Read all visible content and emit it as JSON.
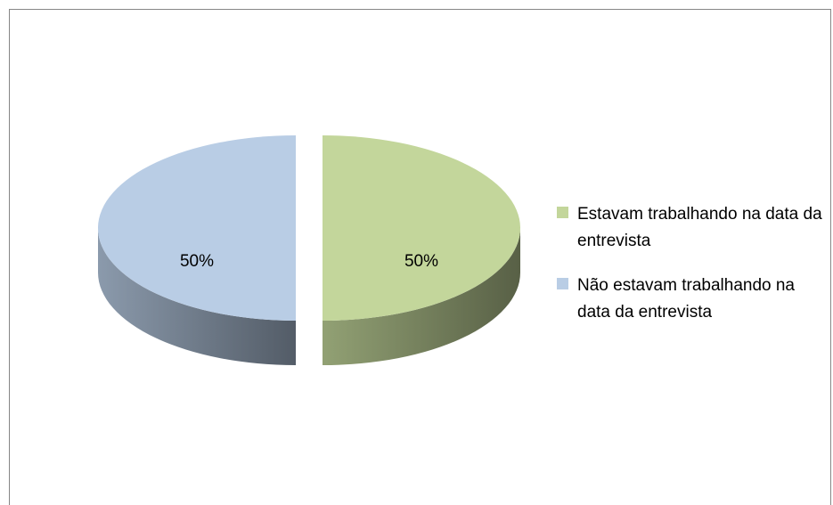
{
  "chart_data": {
    "type": "pie",
    "categories": [
      "Estavam trabalhando na data da entrevista",
      "Não estavam trabalhando na data da entrevista"
    ],
    "values": [
      50,
      50
    ],
    "value_labels": [
      "50%",
      "50%"
    ],
    "colors": [
      "#c3d69b",
      "#b9cde5"
    ],
    "legend": "right"
  }
}
